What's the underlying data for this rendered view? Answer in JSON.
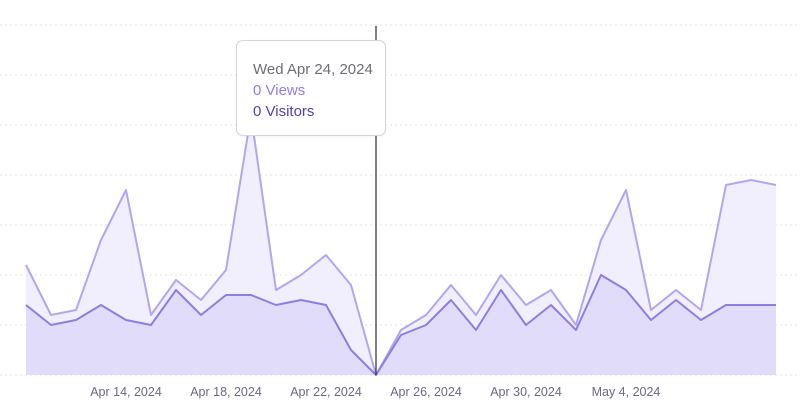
{
  "chart_data": {
    "type": "area",
    "x": [
      "2024-04-10",
      "2024-04-11",
      "2024-04-12",
      "2024-04-13",
      "2024-04-14",
      "2024-04-15",
      "2024-04-16",
      "2024-04-17",
      "2024-04-18",
      "2024-04-19",
      "2024-04-20",
      "2024-04-21",
      "2024-04-22",
      "2024-04-23",
      "2024-04-24",
      "2024-04-25",
      "2024-04-26",
      "2024-04-27",
      "2024-04-28",
      "2024-04-29",
      "2024-04-30",
      "2024-05-01",
      "2024-05-02",
      "2024-05-03",
      "2024-05-04",
      "2024-05-05",
      "2024-05-06",
      "2024-05-07",
      "2024-05-08",
      "2024-05-09",
      "2024-05-10"
    ],
    "x_tick_labels": [
      "Apr 14, 2024",
      "Apr 18, 2024",
      "Apr 22, 2024",
      "Apr 26, 2024",
      "Apr 30, 2024",
      "May 4, 2024"
    ],
    "series": [
      {
        "name": "Views",
        "color": "#b3a6f0",
        "fill": "#f1eefd",
        "values": [
          22,
          12,
          13,
          27,
          37,
          12,
          19,
          15,
          21,
          52,
          17,
          20,
          24,
          18,
          0,
          9,
          12,
          18,
          12,
          20,
          14,
          17,
          10,
          27,
          37,
          13,
          17,
          13,
          38,
          39,
          38
        ]
      },
      {
        "name": "Visitors",
        "color": "#8d7fe0",
        "fill": "#e2dcfb",
        "values": [
          14,
          10,
          11,
          14,
          11,
          10,
          17,
          12,
          16,
          16,
          14,
          15,
          14,
          5,
          0,
          8,
          10,
          15,
          9,
          17,
          10,
          14,
          9,
          20,
          17,
          11,
          15,
          11,
          14,
          14,
          14
        ]
      }
    ],
    "ylim": [
      0,
      70
    ],
    "grid": true,
    "hover_index": 14,
    "hover_line_color": "#2b2b33"
  },
  "tooltip": {
    "date": "Wed Apr 24, 2024",
    "views": "0 Views",
    "visitors": "0 Visitors"
  }
}
